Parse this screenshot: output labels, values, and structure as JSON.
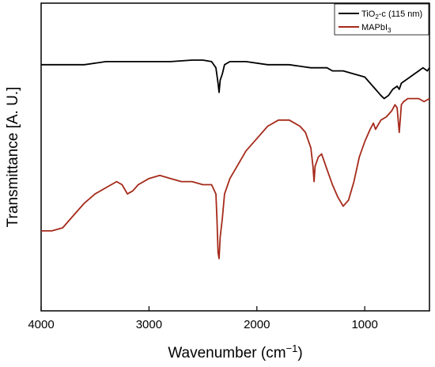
{
  "chart_data": {
    "type": "line",
    "xlabel": "Wavenumber (cm",
    "xlabel_superscript": "−1",
    "xlabel_suffix": ")",
    "ylabel": "Transmittance [A. U.]",
    "xlim": [
      4000,
      400
    ],
    "x_reversed": true,
    "x_ticks": [
      4000,
      3000,
      2000,
      1000
    ],
    "y_ticks": [],
    "grid": false,
    "legend_position": "top-right",
    "legend": [
      {
        "series": 0,
        "base": "TiO",
        "sub": "2",
        "rest": "-c (115 nm)"
      },
      {
        "series": 1,
        "base": "MAPbI",
        "sub": "3",
        "rest": ""
      }
    ],
    "series": [
      {
        "name": "TiO2-c (115 nm)",
        "color": "#000000",
        "x": [
          4000,
          3800,
          3600,
          3400,
          3200,
          3000,
          2800,
          2600,
          2500,
          2420,
          2380,
          2360,
          2350,
          2340,
          2320,
          2300,
          2250,
          2100,
          1900,
          1700,
          1500,
          1350,
          1300,
          1250,
          1200,
          1100,
          1000,
          950,
          900,
          850,
          820,
          780,
          740,
          700,
          680,
          660,
          620,
          580,
          540,
          500,
          460,
          420,
          400
        ],
        "y": [
          0.8,
          0.8,
          0.8,
          0.81,
          0.81,
          0.81,
          0.81,
          0.815,
          0.815,
          0.81,
          0.79,
          0.74,
          0.71,
          0.75,
          0.77,
          0.8,
          0.81,
          0.81,
          0.8,
          0.8,
          0.79,
          0.79,
          0.78,
          0.78,
          0.78,
          0.77,
          0.76,
          0.74,
          0.72,
          0.7,
          0.69,
          0.7,
          0.72,
          0.73,
          0.72,
          0.74,
          0.75,
          0.76,
          0.77,
          0.78,
          0.79,
          0.78,
          0.79
        ]
      },
      {
        "name": "MAPbI3",
        "color": "#a52a1a",
        "x": [
          4000,
          3900,
          3800,
          3700,
          3600,
          3500,
          3400,
          3300,
          3250,
          3200,
          3150,
          3100,
          3000,
          2900,
          2800,
          2700,
          2600,
          2500,
          2420,
          2380,
          2370,
          2360,
          2350,
          2340,
          2320,
          2300,
          2250,
          2200,
          2100,
          2000,
          1900,
          1800,
          1700,
          1650,
          1600,
          1550,
          1500,
          1480,
          1470,
          1460,
          1430,
          1400,
          1350,
          1300,
          1250,
          1200,
          1150,
          1100,
          1050,
          1000,
          950,
          920,
          900,
          850,
          800,
          750,
          720,
          700,
          680,
          660,
          640,
          600,
          550,
          500,
          450,
          400
        ],
        "y": [
          0.26,
          0.26,
          0.27,
          0.31,
          0.35,
          0.38,
          0.4,
          0.42,
          0.41,
          0.38,
          0.39,
          0.41,
          0.43,
          0.44,
          0.43,
          0.42,
          0.42,
          0.41,
          0.41,
          0.38,
          0.3,
          0.19,
          0.17,
          0.24,
          0.3,
          0.38,
          0.43,
          0.46,
          0.52,
          0.56,
          0.6,
          0.62,
          0.62,
          0.61,
          0.6,
          0.58,
          0.53,
          0.47,
          0.42,
          0.47,
          0.5,
          0.51,
          0.46,
          0.41,
          0.37,
          0.34,
          0.36,
          0.42,
          0.5,
          0.55,
          0.59,
          0.61,
          0.59,
          0.62,
          0.63,
          0.65,
          0.67,
          0.66,
          0.58,
          0.67,
          0.68,
          0.69,
          0.69,
          0.69,
          0.68,
          0.69
        ]
      }
    ]
  }
}
